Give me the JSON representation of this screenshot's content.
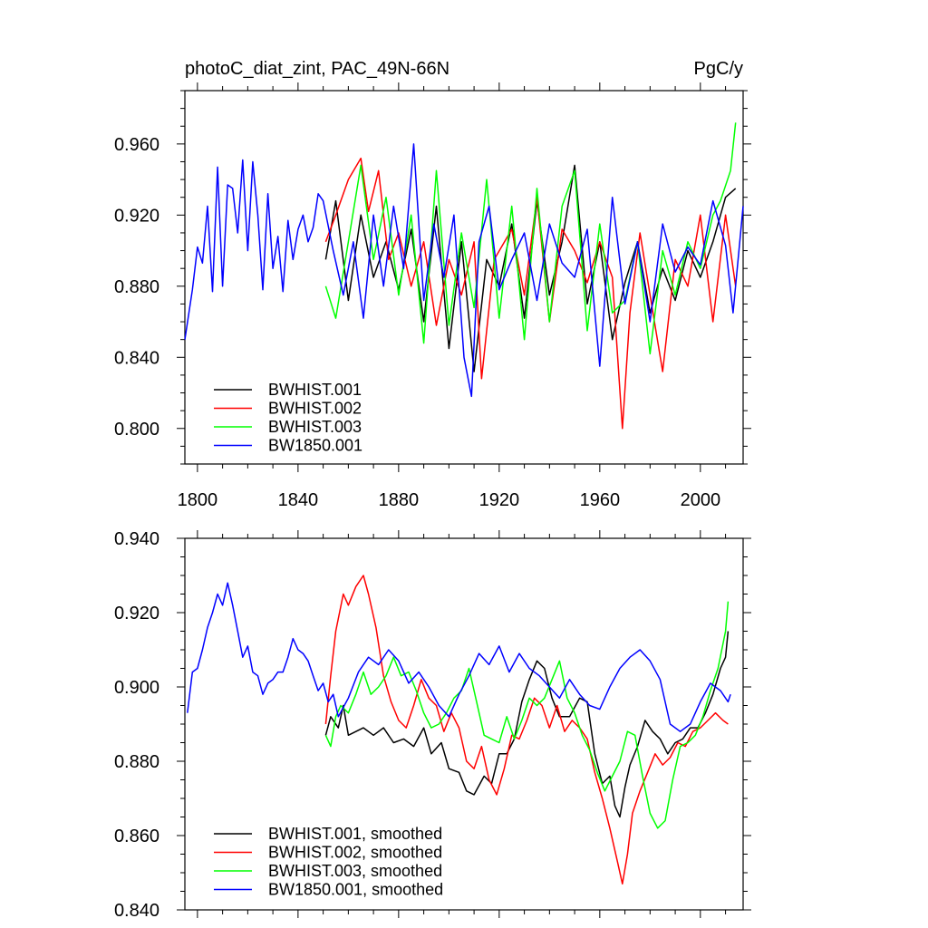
{
  "chart_data": [
    {
      "type": "line",
      "title_left": "photoC_diat_zint, PAC_49N-66N",
      "title_right": "PgC/y",
      "xlim": [
        1795,
        2017
      ],
      "ylim": [
        0.78,
        0.99
      ],
      "xticks": [
        1800,
        1840,
        1880,
        1920,
        1960,
        2000
      ],
      "xtick_labels": [
        "1800",
        "1840",
        "1880",
        "1920",
        "1960",
        "2000"
      ],
      "xminor_step": 10,
      "yticks": [
        0.8,
        0.84,
        0.88,
        0.92,
        0.96
      ],
      "ytick_labels": [
        "0.800",
        "0.840",
        "0.880",
        "0.920",
        "0.960"
      ],
      "yminor_step": 0.01,
      "legend_position": "bottom-left",
      "series": [
        {
          "name": "BWHIST.001",
          "color": "#000000",
          "x": [
            1851,
            1855,
            1860,
            1865,
            1870,
            1875,
            1880,
            1885,
            1890,
            1895,
            1900,
            1905,
            1910,
            1915,
            1920,
            1925,
            1930,
            1935,
            1940,
            1945,
            1950,
            1955,
            1960,
            1965,
            1970,
            1975,
            1980,
            1985,
            1990,
            1995,
            2000,
            2005,
            2010,
            2014
          ],
          "y": [
            0.895,
            0.928,
            0.872,
            0.92,
            0.885,
            0.905,
            0.878,
            0.912,
            0.86,
            0.925,
            0.845,
            0.905,
            0.832,
            0.895,
            0.88,
            0.915,
            0.862,
            0.928,
            0.875,
            0.905,
            0.948,
            0.87,
            0.905,
            0.85,
            0.882,
            0.905,
            0.865,
            0.89,
            0.872,
            0.9,
            0.885,
            0.905,
            0.93,
            0.935
          ]
        },
        {
          "name": "BWHIST.002",
          "color": "#ff0000",
          "x": [
            1851,
            1855,
            1860,
            1865,
            1868,
            1872,
            1876,
            1880,
            1885,
            1890,
            1895,
            1900,
            1905,
            1910,
            1913,
            1918,
            1925,
            1930,
            1935,
            1940,
            1945,
            1950,
            1955,
            1960,
            1965,
            1969,
            1972,
            1976,
            1980,
            1985,
            1990,
            1995,
            2000,
            2005,
            2010,
            2014
          ],
          "y": [
            0.905,
            0.92,
            0.94,
            0.952,
            0.922,
            0.945,
            0.895,
            0.91,
            0.88,
            0.905,
            0.858,
            0.895,
            0.875,
            0.905,
            0.828,
            0.895,
            0.912,
            0.875,
            0.93,
            0.86,
            0.912,
            0.9,
            0.882,
            0.905,
            0.885,
            0.8,
            0.865,
            0.91,
            0.875,
            0.832,
            0.895,
            0.88,
            0.92,
            0.86,
            0.92,
            0.88
          ]
        },
        {
          "name": "BWHIST.003",
          "color": "#00ff00",
          "x": [
            1851,
            1855,
            1860,
            1865,
            1870,
            1875,
            1880,
            1885,
            1890,
            1895,
            1900,
            1905,
            1910,
            1915,
            1920,
            1925,
            1930,
            1935,
            1940,
            1945,
            1950,
            1955,
            1960,
            1965,
            1970,
            1975,
            1980,
            1985,
            1990,
            1995,
            2000,
            2005,
            2008,
            2012,
            2014
          ],
          "y": [
            0.88,
            0.862,
            0.905,
            0.948,
            0.895,
            0.93,
            0.875,
            0.92,
            0.848,
            0.945,
            0.858,
            0.91,
            0.868,
            0.94,
            0.862,
            0.925,
            0.85,
            0.935,
            0.86,
            0.925,
            0.945,
            0.855,
            0.915,
            0.865,
            0.872,
            0.905,
            0.842,
            0.9,
            0.875,
            0.905,
            0.89,
            0.92,
            0.928,
            0.945,
            0.972
          ]
        },
        {
          "name": "BW1850.001",
          "color": "#0000ff",
          "x": [
            1795,
            1798,
            1800,
            1802,
            1804,
            1806,
            1808,
            1810,
            1812,
            1814,
            1816,
            1818,
            1820,
            1822,
            1824,
            1826,
            1828,
            1830,
            1832,
            1834,
            1836,
            1838,
            1840,
            1842,
            1844,
            1846,
            1848,
            1850,
            1854,
            1858,
            1862,
            1866,
            1870,
            1874,
            1878,
            1882,
            1886,
            1890,
            1894,
            1898,
            1902,
            1906,
            1909,
            1912,
            1916,
            1920,
            1925,
            1930,
            1935,
            1940,
            1945,
            1950,
            1955,
            1960,
            1965,
            1970,
            1975,
            1980,
            1985,
            1990,
            1995,
            2000,
            2005,
            2010,
            2013,
            2017
          ],
          "y": [
            0.85,
            0.878,
            0.902,
            0.893,
            0.925,
            0.877,
            0.947,
            0.88,
            0.937,
            0.935,
            0.91,
            0.951,
            0.9,
            0.95,
            0.92,
            0.878,
            0.932,
            0.89,
            0.908,
            0.877,
            0.917,
            0.895,
            0.912,
            0.92,
            0.905,
            0.913,
            0.932,
            0.928,
            0.9,
            0.875,
            0.905,
            0.862,
            0.92,
            0.88,
            0.925,
            0.89,
            0.96,
            0.872,
            0.915,
            0.885,
            0.92,
            0.84,
            0.818,
            0.905,
            0.925,
            0.878,
            0.895,
            0.91,
            0.872,
            0.915,
            0.893,
            0.885,
            0.912,
            0.835,
            0.93,
            0.87,
            0.905,
            0.86,
            0.915,
            0.888,
            0.902,
            0.892,
            0.928,
            0.903,
            0.865,
            0.925
          ]
        }
      ]
    },
    {
      "type": "line",
      "xlim": [
        1795,
        2017
      ],
      "ylim": [
        0.84,
        0.94
      ],
      "xticks": [
        1800,
        1840,
        1880,
        1920,
        1960,
        2000
      ],
      "xminor_step": 10,
      "yticks": [
        0.84,
        0.86,
        0.88,
        0.9,
        0.92,
        0.94
      ],
      "ytick_labels": [
        "0.840",
        "0.860",
        "0.880",
        "0.900",
        "0.920",
        "0.940"
      ],
      "yminor_step": 0.005,
      "legend_position": "bottom-left",
      "series": [
        {
          "name": "BWHIST.001, smoothed",
          "color": "#000000",
          "x": [
            1851,
            1853,
            1856,
            1858,
            1860,
            1863,
            1866,
            1870,
            1874,
            1878,
            1882,
            1886,
            1890,
            1893,
            1897,
            1900,
            1904,
            1907,
            1910,
            1914,
            1917,
            1920,
            1923,
            1926,
            1929,
            1932,
            1935,
            1938,
            1941,
            1944,
            1948,
            1952,
            1955,
            1958,
            1961,
            1964,
            1966,
            1968,
            1970,
            1972,
            1975,
            1978,
            1981,
            1984,
            1987,
            1990,
            1993,
            1996,
            1999,
            2002,
            2005,
            2008,
            2010,
            2011
          ],
          "y": [
            0.887,
            0.892,
            0.889,
            0.895,
            0.887,
            0.888,
            0.889,
            0.887,
            0.889,
            0.885,
            0.886,
            0.884,
            0.889,
            0.882,
            0.885,
            0.878,
            0.877,
            0.872,
            0.871,
            0.876,
            0.874,
            0.882,
            0.882,
            0.886,
            0.896,
            0.902,
            0.907,
            0.905,
            0.897,
            0.892,
            0.892,
            0.897,
            0.896,
            0.882,
            0.874,
            0.876,
            0.868,
            0.865,
            0.873,
            0.879,
            0.884,
            0.891,
            0.888,
            0.886,
            0.882,
            0.885,
            0.886,
            0.889,
            0.889,
            0.893,
            0.898,
            0.905,
            0.908,
            0.915
          ]
        },
        {
          "name": "BWHIST.002, smoothed",
          "color": "#ff0000",
          "x": [
            1851,
            1853,
            1855,
            1858,
            1860,
            1863,
            1866,
            1868,
            1871,
            1874,
            1877,
            1880,
            1883,
            1886,
            1889,
            1892,
            1895,
            1898,
            1901,
            1904,
            1907,
            1910,
            1913,
            1916,
            1919,
            1922,
            1925,
            1928,
            1931,
            1934,
            1937,
            1940,
            1943,
            1946,
            1949,
            1952,
            1955,
            1958,
            1961,
            1964,
            1967,
            1969,
            1971,
            1973,
            1976,
            1979,
            1982,
            1985,
            1988,
            1991,
            1994,
            1997,
            2000,
            2003,
            2006,
            2009,
            2011
          ],
          "y": [
            0.89,
            0.903,
            0.915,
            0.925,
            0.922,
            0.927,
            0.93,
            0.925,
            0.916,
            0.903,
            0.896,
            0.891,
            0.889,
            0.895,
            0.902,
            0.897,
            0.895,
            0.888,
            0.893,
            0.889,
            0.88,
            0.878,
            0.884,
            0.875,
            0.871,
            0.878,
            0.887,
            0.886,
            0.891,
            0.897,
            0.895,
            0.889,
            0.895,
            0.888,
            0.891,
            0.889,
            0.886,
            0.877,
            0.87,
            0.862,
            0.853,
            0.847,
            0.855,
            0.866,
            0.872,
            0.877,
            0.882,
            0.879,
            0.881,
            0.885,
            0.884,
            0.888,
            0.889,
            0.891,
            0.893,
            0.891,
            0.89
          ]
        },
        {
          "name": "BWHIST.003, smoothed",
          "color": "#00ff00",
          "x": [
            1851,
            1853,
            1855,
            1857,
            1860,
            1863,
            1866,
            1869,
            1872,
            1875,
            1878,
            1881,
            1884,
            1887,
            1890,
            1893,
            1896,
            1899,
            1902,
            1905,
            1908,
            1911,
            1914,
            1917,
            1920,
            1923,
            1926,
            1929,
            1932,
            1935,
            1938,
            1941,
            1944,
            1947,
            1950,
            1953,
            1956,
            1959,
            1962,
            1965,
            1968,
            1971,
            1974,
            1977,
            1980,
            1983,
            1986,
            1989,
            1992,
            1995,
            1998,
            2001,
            2004,
            2007,
            2010,
            2011
          ],
          "y": [
            0.887,
            0.884,
            0.892,
            0.895,
            0.893,
            0.898,
            0.904,
            0.898,
            0.9,
            0.903,
            0.908,
            0.903,
            0.904,
            0.899,
            0.893,
            0.889,
            0.89,
            0.893,
            0.897,
            0.899,
            0.905,
            0.896,
            0.887,
            0.886,
            0.885,
            0.892,
            0.886,
            0.891,
            0.897,
            0.895,
            0.897,
            0.902,
            0.907,
            0.897,
            0.893,
            0.887,
            0.883,
            0.877,
            0.872,
            0.876,
            0.88,
            0.888,
            0.887,
            0.876,
            0.866,
            0.862,
            0.864,
            0.875,
            0.884,
            0.885,
            0.887,
            0.892,
            0.899,
            0.905,
            0.915,
            0.923
          ]
        },
        {
          "name": "BW1850.001, smoothed",
          "color": "#0000ff",
          "x": [
            1796,
            1798,
            1800,
            1802,
            1804,
            1806,
            1808,
            1810,
            1812,
            1814,
            1816,
            1818,
            1820,
            1822,
            1824,
            1826,
            1828,
            1830,
            1832,
            1834,
            1836,
            1838,
            1840,
            1842,
            1844,
            1846,
            1848,
            1850,
            1852,
            1854,
            1856,
            1860,
            1864,
            1868,
            1872,
            1876,
            1880,
            1884,
            1888,
            1892,
            1896,
            1900,
            1904,
            1908,
            1912,
            1916,
            1920,
            1924,
            1928,
            1932,
            1936,
            1940,
            1944,
            1948,
            1952,
            1956,
            1960,
            1964,
            1968,
            1972,
            1976,
            1980,
            1984,
            1988,
            1992,
            1996,
            2000,
            2004,
            2008,
            2011,
            2012
          ],
          "y": [
            0.893,
            0.904,
            0.905,
            0.91,
            0.916,
            0.92,
            0.925,
            0.922,
            0.928,
            0.922,
            0.915,
            0.908,
            0.911,
            0.904,
            0.903,
            0.898,
            0.901,
            0.902,
            0.904,
            0.904,
            0.908,
            0.913,
            0.91,
            0.909,
            0.907,
            0.903,
            0.899,
            0.901,
            0.896,
            0.898,
            0.892,
            0.897,
            0.904,
            0.908,
            0.906,
            0.91,
            0.907,
            0.901,
            0.904,
            0.9,
            0.895,
            0.892,
            0.898,
            0.903,
            0.909,
            0.906,
            0.911,
            0.904,
            0.909,
            0.905,
            0.903,
            0.9,
            0.897,
            0.902,
            0.898,
            0.895,
            0.894,
            0.9,
            0.905,
            0.908,
            0.91,
            0.907,
            0.902,
            0.89,
            0.888,
            0.89,
            0.896,
            0.901,
            0.899,
            0.896,
            0.898
          ]
        }
      ]
    }
  ]
}
